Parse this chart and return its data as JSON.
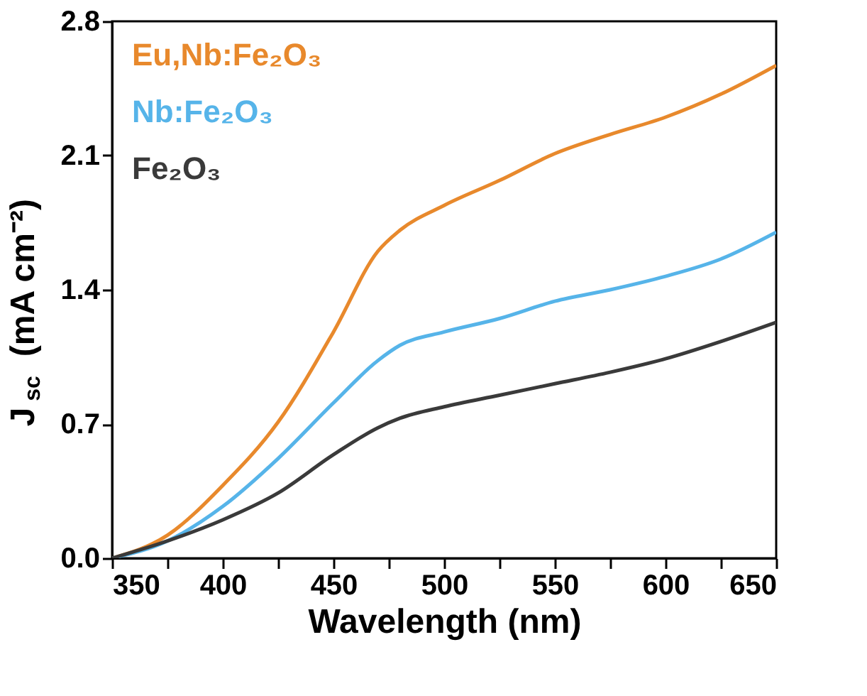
{
  "chart_data": {
    "type": "line",
    "xlabel": "Wavelength (nm)",
    "ylabel": "J$_{sc}$ (mA cm⁻²)",
    "x": [
      350,
      375,
      400,
      425,
      450,
      470,
      480,
      500,
      525,
      550,
      575,
      600,
      625,
      650
    ],
    "series": [
      {
        "name": "Eu,Nb:Fe₂O₃",
        "color": "#e8892c",
        "values": [
          0,
          0.12,
          0.38,
          0.71,
          1.18,
          1.6,
          1.71,
          1.84,
          1.97,
          2.11,
          2.21,
          2.3,
          2.42,
          2.57
        ]
      },
      {
        "name": "Nb:Fe₂O₃",
        "color": "#56b4e9",
        "values": [
          0,
          0.09,
          0.27,
          0.52,
          0.81,
          1.03,
          1.11,
          1.18,
          1.25,
          1.34,
          1.4,
          1.47,
          1.56,
          1.7
        ]
      },
      {
        "name": "Fe₂O₃",
        "color": "#3a3a3a",
        "values": [
          0,
          0.09,
          0.2,
          0.34,
          0.54,
          0.68,
          0.73,
          0.79,
          0.85,
          0.91,
          0.97,
          1.04,
          1.13,
          1.23
        ]
      }
    ],
    "xlim": [
      350,
      650
    ],
    "ylim": [
      0,
      2.8
    ],
    "xticks": [
      350,
      {
        "value": 375,
        "label": null
      },
      400,
      {
        "value": 425,
        "label": null
      },
      450,
      {
        "value": 475,
        "label": null
      },
      500,
      {
        "value": 525,
        "label": null
      },
      550,
      {
        "value": 575,
        "label": null
      },
      600,
      {
        "value": 625,
        "label": null
      },
      650
    ],
    "yticks": [
      {
        "value": 0,
        "label": "0.0"
      },
      0.7,
      1.4,
      2.1,
      2.8
    ],
    "grid": false,
    "legend": "top left",
    "marker": "none",
    "line_style": "solid"
  }
}
